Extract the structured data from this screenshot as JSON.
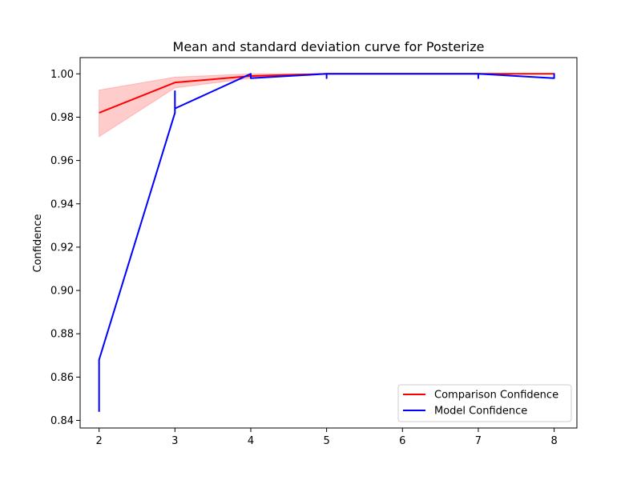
{
  "chart_data": {
    "type": "line",
    "title": "Mean and standard deviation curve for Posterize",
    "xlabel": "",
    "ylabel": "Confidence",
    "xlim": [
      1.75,
      8.3
    ],
    "ylim": [
      0.8365,
      1.0075
    ],
    "xticks": [
      2,
      3,
      4,
      5,
      6,
      7,
      8
    ],
    "yticks": [
      0.84,
      0.86,
      0.88,
      0.9,
      0.92,
      0.94,
      0.96,
      0.98,
      1.0
    ],
    "ytick_labels": [
      "0.84",
      "0.86",
      "0.88",
      "0.90",
      "0.92",
      "0.94",
      "0.96",
      "0.98",
      "1.00"
    ],
    "grid": false,
    "legend_position": "lower right",
    "series": [
      {
        "name": "Comparison Confidence",
        "color": "#ff0000",
        "x": [
          2,
          3,
          4,
          5,
          6,
          7,
          8
        ],
        "y": [
          0.982,
          0.996,
          0.999,
          1.0,
          1.0,
          1.0,
          1.0
        ]
      },
      {
        "name": "Model Confidence",
        "color": "#0000ff",
        "x": [
          2,
          2,
          2,
          2,
          3,
          3,
          3,
          3,
          3,
          4,
          4,
          4,
          5,
          5,
          5,
          6,
          6,
          7,
          7,
          7,
          8,
          8,
          8
        ],
        "y": [
          0.844,
          0.868,
          0.866,
          0.868,
          0.982,
          0.992,
          0.984,
          0.991,
          0.984,
          1.0,
          0.998,
          0.998,
          1.0,
          0.998,
          1.0,
          1.0,
          1.0,
          1.0,
          0.998,
          1.0,
          0.998,
          1.0,
          0.998
        ]
      }
    ],
    "band": {
      "series": "Comparison Confidence",
      "color": "#ff0000",
      "opacity": 0.2,
      "x": [
        2,
        3,
        4,
        5,
        6,
        7,
        8
      ],
      "upper": [
        0.9925,
        0.9985,
        1.0,
        1.0,
        1.0,
        1.0,
        1.0
      ],
      "lower": [
        0.971,
        0.9935,
        0.998,
        1.0,
        1.0,
        1.0,
        1.0
      ]
    }
  }
}
